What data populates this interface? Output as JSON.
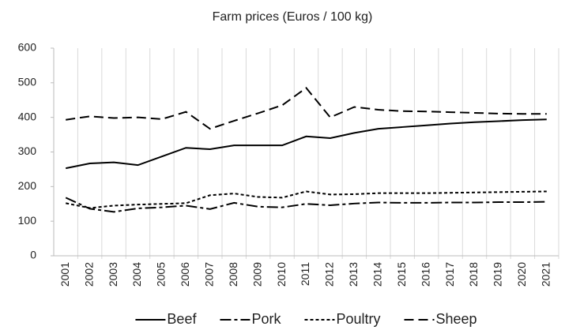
{
  "chart_data": {
    "type": "line",
    "title": "Farm prices (Euros / 100 kg)",
    "categories": [
      "2001",
      "2002",
      "2003",
      "2004",
      "2005",
      "2006",
      "2007",
      "2008",
      "2009",
      "2010",
      "2011",
      "2012",
      "2013",
      "2014",
      "2015",
      "2016",
      "2017",
      "2018",
      "2019",
      "2020",
      "2021"
    ],
    "series": [
      {
        "name": "Beef",
        "color": "#000000",
        "dash": "none",
        "values": [
          253,
          267,
          270,
          262,
          287,
          312,
          308,
          319,
          319,
          319,
          345,
          340,
          355,
          367,
          372,
          377,
          382,
          386,
          389,
          392,
          394
        ]
      },
      {
        "name": "Pork",
        "color": "#000000",
        "dash": "14 4 4 4",
        "values": [
          168,
          136,
          127,
          137,
          140,
          145,
          135,
          153,
          142,
          140,
          150,
          146,
          151,
          154,
          153,
          153,
          154,
          154,
          155,
          155,
          156
        ]
      },
      {
        "name": "Poultry",
        "color": "#000000",
        "dash": "4 3",
        "values": [
          152,
          138,
          145,
          148,
          150,
          152,
          175,
          180,
          170,
          168,
          186,
          177,
          178,
          181,
          181,
          181,
          182,
          183,
          184,
          185,
          186
        ]
      },
      {
        "name": "Sheep",
        "color": "#000000",
        "dash": "12 6",
        "values": [
          393,
          403,
          398,
          400,
          395,
          416,
          367,
          390,
          412,
          435,
          485,
          400,
          430,
          422,
          418,
          417,
          415,
          413,
          411,
          410,
          410
        ]
      }
    ],
    "ylim": [
      0,
      600
    ],
    "yticks": [
      0,
      100,
      200,
      300,
      400,
      500,
      600
    ],
    "grid": "x",
    "legend": "bottom"
  }
}
